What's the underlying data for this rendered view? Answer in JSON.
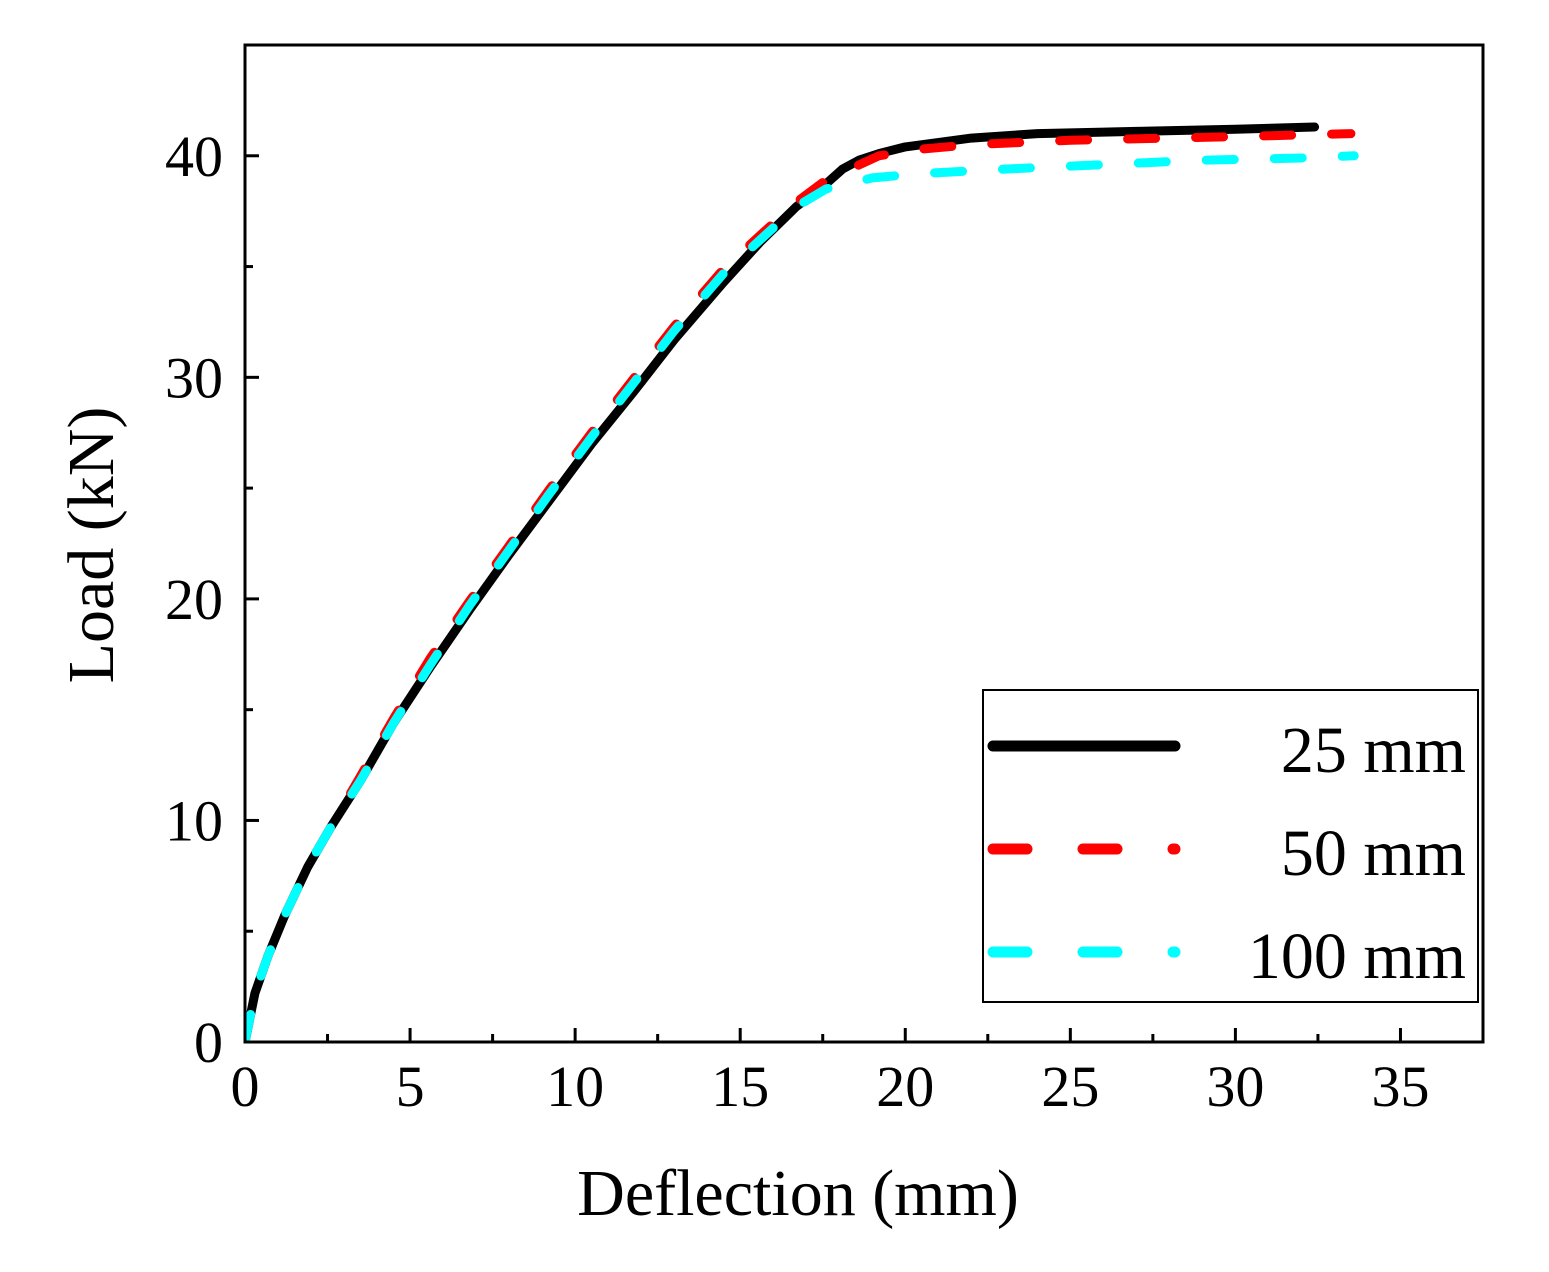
{
  "chart_data": {
    "type": "line",
    "title": "",
    "xlabel": "Deflection (mm)",
    "ylabel": "Load (kN)",
    "xlim": [
      0,
      37.5
    ],
    "ylim": [
      0,
      45
    ],
    "x_ticks": [
      0,
      5,
      10,
      15,
      20,
      25,
      30,
      35
    ],
    "y_ticks": [
      0,
      10,
      20,
      30,
      40
    ],
    "x_minor_step": 2.5,
    "y_minor_step": 5,
    "grid": false,
    "legend_position": "bottom-right",
    "series": [
      {
        "name": "25 mm",
        "color": "#000000",
        "style": "solid",
        "points": [
          [
            0,
            0
          ],
          [
            0.3,
            2.2
          ],
          [
            0.7,
            3.9
          ],
          [
            1.2,
            5.7
          ],
          [
            1.9,
            7.9
          ],
          [
            2.6,
            9.7
          ],
          [
            3.5,
            11.8
          ],
          [
            4.5,
            14.4
          ],
          [
            5.6,
            16.9
          ],
          [
            6.8,
            19.5
          ],
          [
            8.0,
            22.0
          ],
          [
            9.2,
            24.4
          ],
          [
            10.5,
            27.0
          ],
          [
            11.8,
            29.4
          ],
          [
            13.0,
            31.7
          ],
          [
            14.5,
            34.3
          ],
          [
            15.6,
            36.1
          ],
          [
            16.7,
            37.7
          ],
          [
            17.5,
            38.6
          ],
          [
            18.1,
            39.4
          ],
          [
            18.6,
            39.8
          ],
          [
            19.2,
            40.1
          ],
          [
            20.0,
            40.4
          ],
          [
            22.0,
            40.8
          ],
          [
            24.0,
            41.0
          ],
          [
            27.0,
            41.1
          ],
          [
            30.0,
            41.2
          ],
          [
            32.4,
            41.3
          ]
        ]
      },
      {
        "name": "50 mm",
        "color": "#ff0000",
        "style": "dashed",
        "points": [
          [
            0,
            0
          ],
          [
            0.3,
            2.2
          ],
          [
            0.7,
            3.9
          ],
          [
            1.2,
            5.7
          ],
          [
            1.9,
            7.9
          ],
          [
            2.6,
            9.7
          ],
          [
            3.5,
            12.0
          ],
          [
            4.5,
            14.6
          ],
          [
            5.6,
            17.3
          ],
          [
            6.8,
            19.9
          ],
          [
            8.0,
            22.4
          ],
          [
            9.2,
            24.9
          ],
          [
            10.5,
            27.5
          ],
          [
            11.8,
            30.0
          ],
          [
            13.0,
            32.3
          ],
          [
            14.5,
            34.9
          ],
          [
            15.6,
            36.4
          ],
          [
            16.7,
            37.9
          ],
          [
            17.6,
            38.9
          ],
          [
            19.2,
            40.0
          ],
          [
            20.5,
            40.3
          ],
          [
            22.0,
            40.5
          ],
          [
            25.0,
            40.7
          ],
          [
            28.0,
            40.8
          ],
          [
            31.0,
            40.9
          ],
          [
            33.5,
            41.0
          ]
        ]
      },
      {
        "name": "100 mm",
        "color": "#00ffff",
        "style": "dashed",
        "points": [
          [
            0,
            0
          ],
          [
            0.3,
            2.2
          ],
          [
            0.7,
            3.9
          ],
          [
            1.2,
            5.7
          ],
          [
            1.9,
            7.9
          ],
          [
            2.6,
            9.7
          ],
          [
            3.5,
            11.8
          ],
          [
            4.5,
            14.4
          ],
          [
            5.6,
            17.0
          ],
          [
            6.8,
            19.7
          ],
          [
            8.0,
            22.2
          ],
          [
            9.2,
            24.7
          ],
          [
            10.5,
            27.3
          ],
          [
            11.8,
            29.8
          ],
          [
            13.0,
            32.1
          ],
          [
            14.5,
            34.7
          ],
          [
            15.6,
            36.2
          ],
          [
            16.7,
            37.7
          ],
          [
            17.6,
            38.5
          ],
          [
            19.0,
            39.0
          ],
          [
            20.5,
            39.2
          ],
          [
            23.0,
            39.4
          ],
          [
            26.0,
            39.6
          ],
          [
            29.0,
            39.8
          ],
          [
            32.0,
            39.9
          ],
          [
            33.6,
            40.0
          ]
        ]
      }
    ]
  }
}
